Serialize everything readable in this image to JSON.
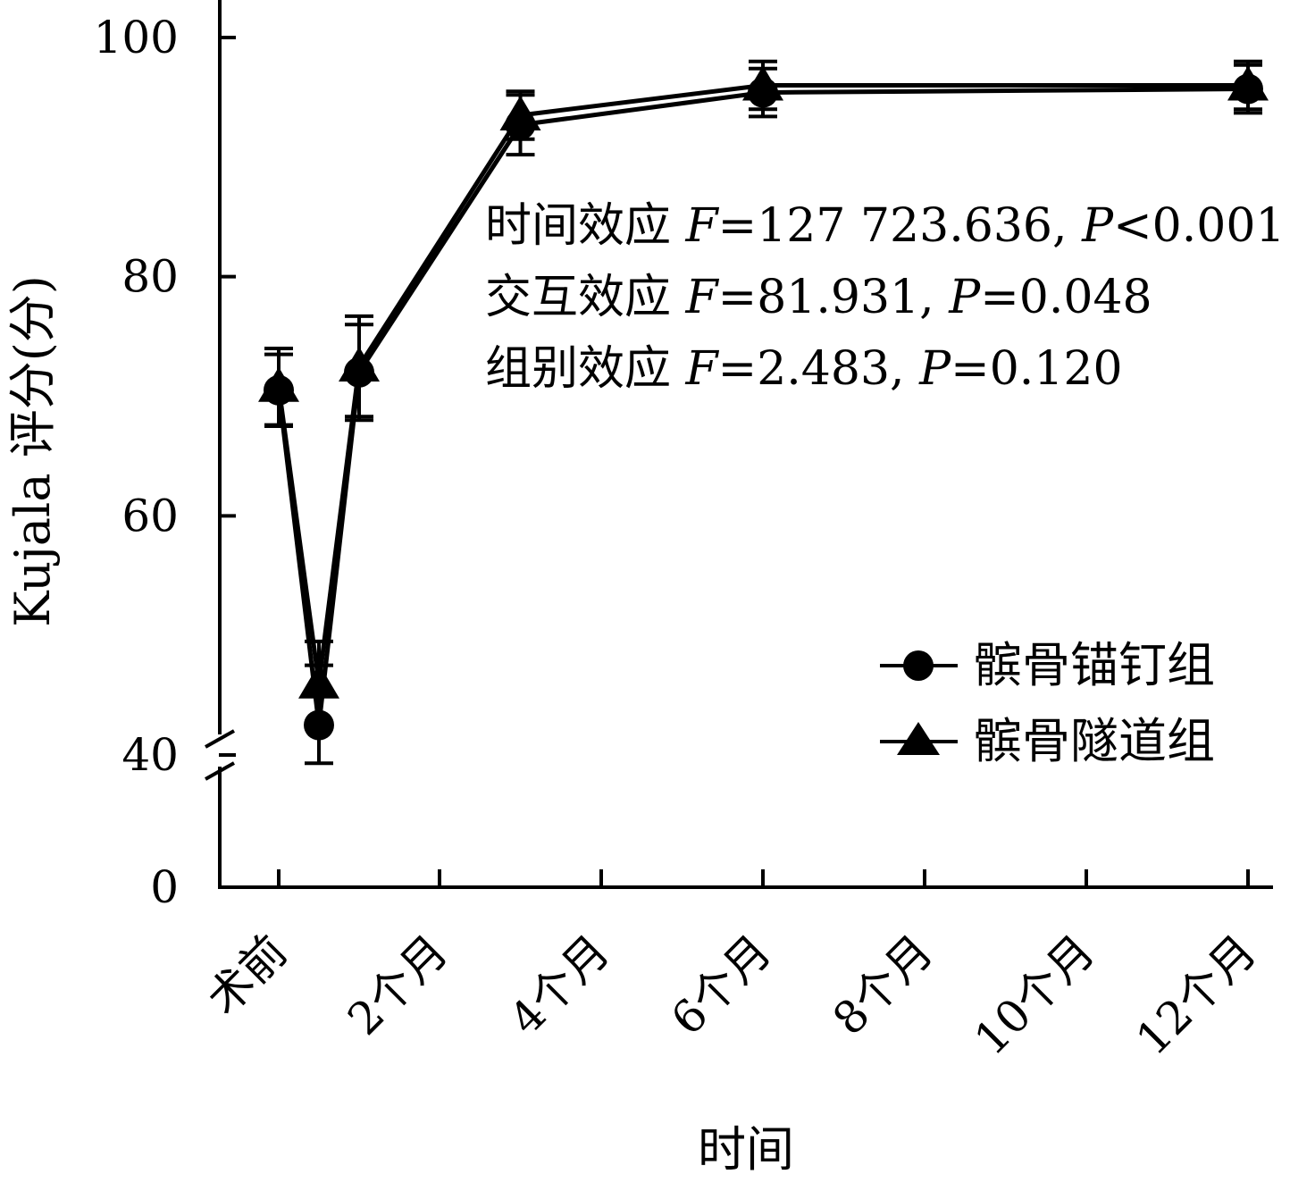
{
  "chart_data": {
    "type": "line",
    "title": "",
    "xlabel": "时间",
    "ylabel": "Kujala 评分(分)",
    "x_categories": [
      "术前",
      "2个月",
      "4个月",
      "6个月",
      "8个月",
      "10个月",
      "12个月"
    ],
    "y_ticks": [
      "0",
      "40",
      "60",
      "80",
      "100"
    ],
    "y_axis_break": [
      0,
      40
    ],
    "ylim": [
      0,
      100
    ],
    "grid": false,
    "legend_position": "bottom-right",
    "series": [
      {
        "name": "髌骨锚钉组",
        "marker": "circle",
        "x_months": [
          0,
          0.5,
          1,
          3,
          6,
          12
        ],
        "values": [
          70.5,
          42.5,
          72.0,
          92.7,
          95.4,
          95.7
        ],
        "errors": [
          3.0,
          5.0,
          4.0,
          2.5,
          2.0,
          2.0
        ]
      },
      {
        "name": "髌骨隧道组",
        "marker": "triangle",
        "x_months": [
          0,
          0.5,
          1,
          3,
          6,
          12
        ],
        "values": [
          70.8,
          46.0,
          72.5,
          93.5,
          96.0,
          96.0
        ],
        "errors": [
          3.2,
          3.5,
          4.2,
          2.0,
          2.0,
          2.0
        ]
      }
    ],
    "annotations": [
      {
        "label": "时间效应 ",
        "f_sym": "F",
        "f_val": "=127 723.636, ",
        "p_sym": "P",
        "p_val": "<0.001"
      },
      {
        "label": "交互效应 ",
        "f_sym": "F",
        "f_val": "=81.931, ",
        "p_sym": "P",
        "p_val": "=0.048"
      },
      {
        "label": "组别效应 ",
        "f_sym": "F",
        "f_val": "=2.483, ",
        "p_sym": "P",
        "p_val": "=0.120"
      }
    ]
  }
}
